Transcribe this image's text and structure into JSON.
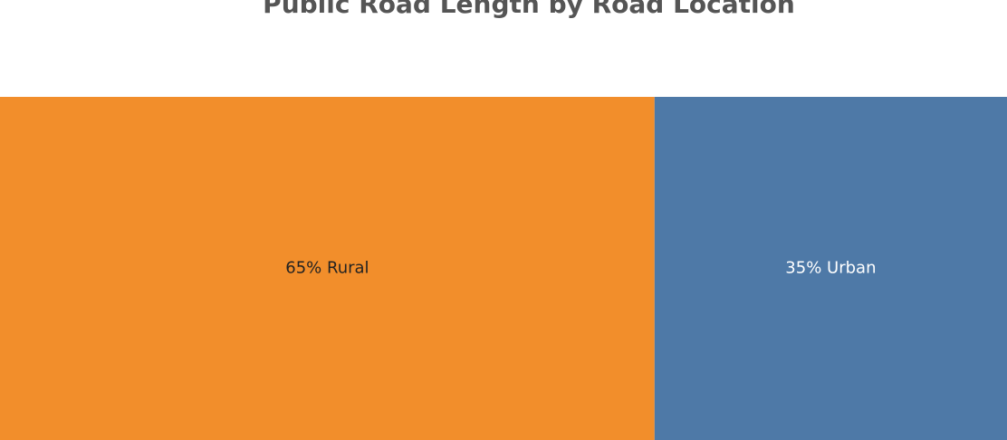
{
  "chart_data": {
    "type": "treemap",
    "title": "Public Road Length by Road Location",
    "categories": [
      "Rural",
      "Urban"
    ],
    "values": [
      65,
      35
    ],
    "value_labels": [
      "65%",
      "35%"
    ],
    "colors": [
      "#f28e2b",
      "#4e79a7"
    ]
  }
}
